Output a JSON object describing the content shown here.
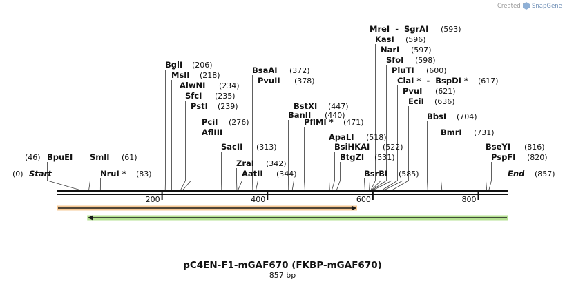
{
  "credit": {
    "prefix": "Created by",
    "brand": "SnapGene"
  },
  "map": {
    "total_bp": 857,
    "start_label": "Start",
    "end_label": "End",
    "start_pos": "(0)",
    "end_pos": "(857)",
    "ruler_ticks": [
      200,
      400,
      600,
      800
    ],
    "features": [
      {
        "name": "feature-orange-forward",
        "start": 0,
        "end": 570,
        "direction": "forward",
        "color": "#ef9a3d"
      },
      {
        "name": "feature-green-reverse",
        "start": 58,
        "end": 857,
        "direction": "reverse",
        "color": "#7acb3a"
      }
    ],
    "sites": [
      {
        "name": "BpuEI",
        "pos": "(46)",
        "at": 46
      },
      {
        "name": "SmlI",
        "pos": "(61)",
        "at": 61
      },
      {
        "name": "NruI *",
        "pos": "(83)",
        "at": 83
      },
      {
        "name": "BglI",
        "pos": "(206)",
        "at": 206
      },
      {
        "name": "MslI",
        "pos": "(218)",
        "at": 218
      },
      {
        "name": "AlwNI",
        "pos": "(234)",
        "at": 234
      },
      {
        "name": "SfcI",
        "pos": "(235)",
        "at": 235
      },
      {
        "name": "PstI",
        "pos": "(239)",
        "at": 239
      },
      {
        "name": "PciI",
        "pos": "(276)",
        "at": 276
      },
      {
        "name": "AflIII",
        "pos": "",
        "at": 276
      },
      {
        "name": "SacII",
        "pos": "(313)",
        "at": 313
      },
      {
        "name": "ZraI",
        "pos": "(342)",
        "at": 342
      },
      {
        "name": "AatII",
        "pos": "(344)",
        "at": 344
      },
      {
        "name": "BsaAI",
        "pos": "(372)",
        "at": 372
      },
      {
        "name": "PvuII",
        "pos": "(378)",
        "at": 378
      },
      {
        "name": "BanII",
        "pos": "(440)",
        "at": 440
      },
      {
        "name": "BstXI",
        "pos": "(447)",
        "at": 447
      },
      {
        "name": "PflMI *",
        "pos": "(471)",
        "at": 471
      },
      {
        "name": "ApaLI",
        "pos": "(518)",
        "at": 518
      },
      {
        "name": "BsiHKAI",
        "pos": "(522)",
        "at": 522
      },
      {
        "name": "BtgZI",
        "pos": "(531)",
        "at": 531
      },
      {
        "name": "BsrBI",
        "pos": "(585)",
        "at": 585
      },
      {
        "name": "MreI  -  SgrAI",
        "pos": "(593)",
        "at": 593
      },
      {
        "name": "KasI",
        "pos": "(596)",
        "at": 596
      },
      {
        "name": "NarI",
        "pos": "(597)",
        "at": 597
      },
      {
        "name": "SfoI",
        "pos": "(598)",
        "at": 598
      },
      {
        "name": "PluTI",
        "pos": "(600)",
        "at": 600
      },
      {
        "name": "ClaI *  -  BspDI *",
        "pos": "(617)",
        "at": 617
      },
      {
        "name": "PvuI",
        "pos": "(621)",
        "at": 621
      },
      {
        "name": "EciI",
        "pos": "(636)",
        "at": 636
      },
      {
        "name": "BbsI",
        "pos": "(704)",
        "at": 704
      },
      {
        "name": "BmrI",
        "pos": "(731)",
        "at": 731
      },
      {
        "name": "BseYI",
        "pos": "(816)",
        "at": 816
      },
      {
        "name": "PspFI",
        "pos": "(820)",
        "at": 820
      }
    ]
  },
  "title": "pC4EN-F1-mGAF670  (FKBP-mGAF670)",
  "subtitle": "857 bp"
}
